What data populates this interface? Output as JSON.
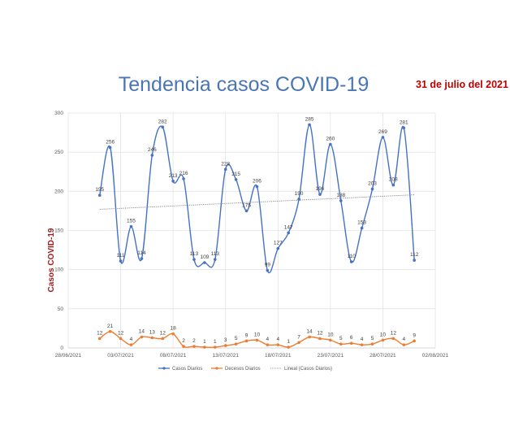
{
  "chart_data": {
    "type": "line",
    "title": "Tendencia casos COVID-19",
    "subtitle": "31 de julio del 2021",
    "xlabel": "",
    "ylabel": "Casos COVID-19",
    "ylim": [
      0,
      300
    ],
    "yticks": [
      "0",
      "50",
      "100",
      "150",
      "200",
      "250",
      "300"
    ],
    "xlim": [
      "28/06/2021",
      "02/08/2021"
    ],
    "xticks": [
      "28/06/2021",
      "03/07/2021",
      "08/07/2021",
      "13/07/2021",
      "18/07/2021",
      "23/07/2021",
      "28/07/2021",
      "02/08/2021"
    ],
    "x": [
      "01/07/2021",
      "02/07/2021",
      "03/07/2021",
      "04/07/2021",
      "05/07/2021",
      "06/07/2021",
      "07/07/2021",
      "08/07/2021",
      "09/07/2021",
      "10/07/2021",
      "11/07/2021",
      "12/07/2021",
      "13/07/2021",
      "14/07/2021",
      "15/07/2021",
      "16/07/2021",
      "17/07/2021",
      "18/07/2021",
      "19/07/2021",
      "20/07/2021",
      "21/07/2021",
      "22/07/2021",
      "23/07/2021",
      "24/07/2021",
      "25/07/2021",
      "26/07/2021",
      "27/07/2021",
      "28/07/2021",
      "29/07/2021",
      "30/07/2021",
      "31/07/2021"
    ],
    "series": [
      {
        "name": "Casos Diarios",
        "color": "#4472c4",
        "values": [
          195,
          256,
          111,
          155,
          114,
          246,
          282,
          213,
          216,
          113,
          109,
          113,
          228,
          215,
          175,
          206,
          99,
          127,
          147,
          190,
          285,
          196,
          260,
          188,
          110,
          153,
          203,
          269,
          208,
          281,
          112
        ]
      },
      {
        "name": "Decesos Diarios",
        "color": "#ed7d31",
        "values": [
          12,
          21,
          12,
          4,
          14,
          13,
          12,
          18,
          2,
          2,
          1,
          1,
          3,
          5,
          9,
          10,
          4,
          4,
          1,
          7,
          14,
          12,
          10,
          5,
          6,
          4,
          5,
          10,
          12,
          4,
          9
        ]
      }
    ],
    "trendline": {
      "name": "Lineal (Casos Diarios)",
      "type": "linear",
      "of": "Casos Diarios",
      "color": "#7f7f7f"
    },
    "grid": true,
    "legend": "bottom"
  }
}
